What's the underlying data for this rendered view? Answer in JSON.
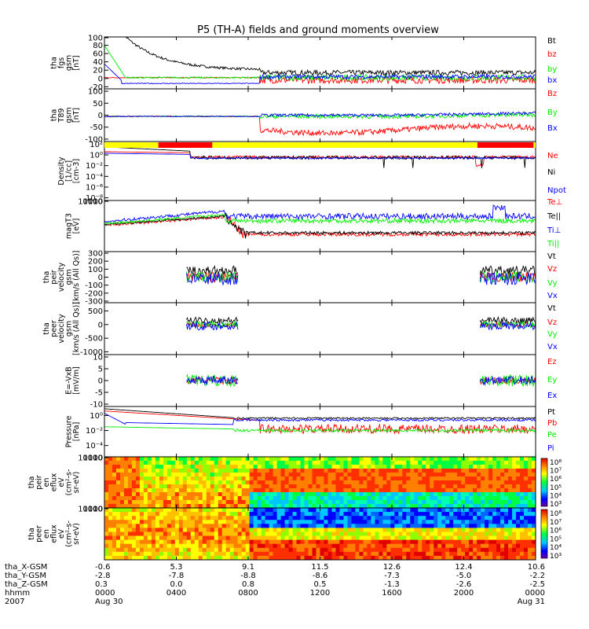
{
  "title": "P5 (TH-A) fields and ground moments overview",
  "colors": {
    "black": "#000000",
    "red": "#ff0000",
    "green": "#00ee00",
    "blue": "#0000ff"
  },
  "chart_data": [
    {
      "type": "line",
      "id": "fgs",
      "ylabel_lines": [
        "tha",
        "fgs",
        "gsm",
        "[nT]"
      ],
      "yticks": [
        "100",
        "80",
        "60",
        "40",
        "20",
        "0",
        "-20"
      ],
      "ylim": [
        -25,
        100
      ],
      "series": [
        {
          "name": "Bt",
          "color": "#000000"
        },
        {
          "name": "bz",
          "color": "#ff0000"
        },
        {
          "name": "by",
          "color": "#00ee00"
        },
        {
          "name": "bx",
          "color": "#0000ff"
        }
      ]
    },
    {
      "type": "line",
      "id": "t89",
      "ylabel_lines": [
        "tha",
        "T89",
        "gsm",
        "[nT]"
      ],
      "yticks": [
        "100",
        "50",
        "0",
        "-50",
        "-100"
      ],
      "ylim": [
        -110,
        110
      ],
      "series": [
        {
          "name": "Bz",
          "color": "#ff0000"
        },
        {
          "name": "By",
          "color": "#00ee00"
        },
        {
          "name": "Bx",
          "color": "#0000ff"
        }
      ]
    },
    {
      "type": "line",
      "id": "density",
      "ylabel_lines": [
        "Density",
        "[1/cc]",
        "[cm-3]"
      ],
      "yticks": [
        "10²",
        "10⁰",
        "10⁻²",
        "10⁻⁴",
        "10⁻⁶",
        "10⁻⁸"
      ],
      "ylim": [
        -8.5,
        2.5
      ],
      "log": true,
      "series": [
        {
          "name": "Ne",
          "color": "#ff0000"
        },
        {
          "name": "Ni",
          "color": "#000000"
        },
        {
          "name": "Npot",
          "color": "#0000ff"
        }
      ]
    },
    {
      "type": "line",
      "id": "temp",
      "ylabel_lines": [
        "magT3",
        "[eV]"
      ],
      "yticks": [
        "10000",
        "1000",
        "100",
        "10"
      ],
      "ylim": [
        0.7,
        4.1
      ],
      "log": true,
      "series": [
        {
          "name": "Te⊥",
          "color": "#ff0000"
        },
        {
          "name": "Te||",
          "color": "#000000"
        },
        {
          "name": "Ti⊥",
          "color": "#0000ff"
        },
        {
          "name": "Ti||",
          "color": "#00ee00"
        }
      ]
    },
    {
      "type": "line",
      "id": "peir",
      "ylabel_lines": [
        "tha",
        "peir",
        "velocity",
        "gsm",
        "[km/s (All Qs)]"
      ],
      "yticks": [
        "300",
        "200",
        "100",
        "0",
        "-100",
        "-200",
        "-300"
      ],
      "ylim": [
        -320,
        320
      ],
      "series": [
        {
          "name": "Vt",
          "color": "#000000"
        },
        {
          "name": "Vz",
          "color": "#ff0000"
        },
        {
          "name": "Vy",
          "color": "#00ee00"
        },
        {
          "name": "Vx",
          "color": "#0000ff"
        }
      ]
    },
    {
      "type": "line",
      "id": "peer",
      "ylabel_lines": [
        "tha",
        "peer",
        "velocity",
        "gsm",
        "[km/s (All Qs)]"
      ],
      "yticks": [
        "500",
        "0",
        "-500",
        "-1000"
      ],
      "ylim": [
        -1100,
        800
      ],
      "series": [
        {
          "name": "Vt",
          "color": "#000000"
        },
        {
          "name": "Vz",
          "color": "#ff0000"
        },
        {
          "name": "Vy",
          "color": "#00ee00"
        },
        {
          "name": "Vx",
          "color": "#0000ff"
        }
      ]
    },
    {
      "type": "line",
      "id": "efield",
      "ylabel_lines": [
        "E=-VxB",
        "[mV/m]"
      ],
      "yticks": [
        "10",
        "5",
        "0",
        "-5",
        "-10"
      ],
      "ylim": [
        -11,
        11
      ],
      "series": [
        {
          "name": "Ez",
          "color": "#ff0000"
        },
        {
          "name": "Ey",
          "color": "#00ee00"
        },
        {
          "name": "Ex",
          "color": "#0000ff"
        }
      ]
    },
    {
      "type": "line",
      "id": "pressure",
      "ylabel_lines": [
        "Pressure",
        "[nPa]"
      ],
      "yticks": [
        "10⁰",
        "10⁻²",
        "10⁻⁴"
      ],
      "ylim": [
        -5.5,
        1.2
      ],
      "log": true,
      "series": [
        {
          "name": "Pt",
          "color": "#000000"
        },
        {
          "name": "Pb",
          "color": "#ff0000"
        },
        {
          "name": "Pe",
          "color": "#00ee00"
        },
        {
          "name": "Pi",
          "color": "#0000ff"
        }
      ]
    },
    {
      "type": "heatmap",
      "id": "peir_spec",
      "ylabel_lines": [
        "tha",
        "peir",
        "en",
        "eflux",
        "eV",
        "(cm²-s-",
        "sr-eV)"
      ],
      "yticks": [
        "10000",
        "1000",
        "100",
        "10"
      ],
      "ylim": [
        0.8,
        4.3
      ],
      "log": true,
      "colorbar_ticks": [
        "10⁸",
        "10⁷",
        "10⁶",
        "10⁵",
        "10⁴",
        "10³"
      ]
    },
    {
      "type": "heatmap",
      "id": "peer_spec",
      "ylabel_lines": [
        "tha",
        "peer",
        "en",
        "eflux",
        "eV",
        "(cm²-s-",
        "sr-eV)"
      ],
      "yticks": [
        "10000",
        "1000",
        "100",
        "10"
      ],
      "ylim": [
        0.8,
        4.3
      ],
      "log": true,
      "colorbar_ticks": [
        "10⁸",
        "10⁷",
        "10⁶",
        "10⁵",
        "10⁴",
        "10³"
      ]
    }
  ],
  "xaxis": {
    "row_labels": [
      "tha_X-GSM",
      "tha_Y-GSM",
      "tha_Z-GSM",
      "hhmm",
      "2007"
    ],
    "ticks": [
      {
        "x": "-0.6",
        "y": "-2.8",
        "z": "0.3",
        "hhmm": "0000",
        "date": "Aug 30"
      },
      {
        "x": "5.3",
        "y": "-7.8",
        "z": "0.0",
        "hhmm": "0400",
        "date": ""
      },
      {
        "x": "9.1",
        "y": "-8.8",
        "z": "0.8",
        "hhmm": "0800",
        "date": ""
      },
      {
        "x": "11.5",
        "y": "-8.6",
        "z": "0.5",
        "hhmm": "1200",
        "date": ""
      },
      {
        "x": "12.6",
        "y": "-7.3",
        "z": "-1.3",
        "hhmm": "1600",
        "date": ""
      },
      {
        "x": "12.4",
        "y": "-5.0",
        "z": "-2.6",
        "hhmm": "2000",
        "date": ""
      },
      {
        "x": "10.6",
        "y": "-2.2",
        "z": "-2.5",
        "hhmm": "0000",
        "date": "Aug 31"
      }
    ]
  }
}
